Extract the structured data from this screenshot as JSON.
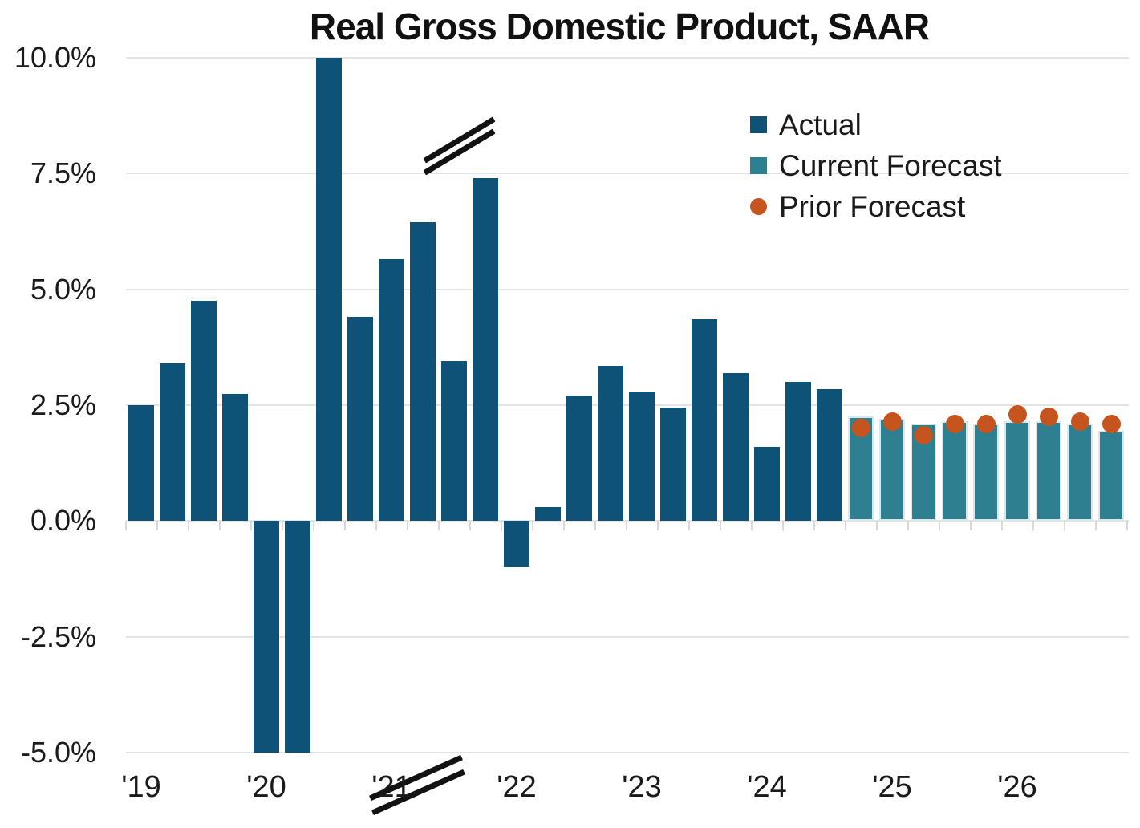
{
  "chart_data": {
    "type": "bar",
    "title": "Real Gross Domestic Product, SAAR",
    "xlabel": "",
    "ylabel": "",
    "ylim": [
      -5,
      10
    ],
    "grid": true,
    "y_tick_labels": [
      "10.0%",
      "7.5%",
      "5.0%",
      "2.5%",
      "0.0%",
      "-2.5%",
      "-5.0%"
    ],
    "y_tick_values": [
      10,
      7.5,
      5,
      2.5,
      0,
      -2.5,
      -5
    ],
    "x_year_labels": [
      "'19",
      "'20",
      "'21",
      "'22",
      "'23",
      "'24",
      "'25",
      "'26"
    ],
    "quarters_per_year": 4,
    "axis_break_note": "2020 Q1 and Q2 bars clipped at -5% and 2020 Q3 bar clipped at 10%, marked with double-slash break marks",
    "colors": {
      "actual": "#0f5277",
      "current_forecast": "#2e7f90",
      "current_forecast_edge": "#d9e6ec",
      "prior_forecast": "#c6541e",
      "gridline": "#e4e4e4",
      "tick": "#d9d9d9",
      "text": "#1a1a1a"
    },
    "legend": {
      "position": "upper right",
      "entries": [
        {
          "label": "Actual",
          "color": "#0f5277",
          "marker": "square"
        },
        {
          "label": "Current Forecast",
          "color": "#2e7f90",
          "marker": "square"
        },
        {
          "label": "Prior Forecast",
          "color": "#c6541e",
          "marker": "circle"
        }
      ]
    },
    "series": [
      {
        "name": "Actual",
        "type": "bar",
        "color": "#0f5277",
        "points": [
          {
            "x": "2019 Q1",
            "y": 2.5
          },
          {
            "x": "2019 Q2",
            "y": 3.4
          },
          {
            "x": "2019 Q3",
            "y": 4.75
          },
          {
            "x": "2019 Q4",
            "y": 2.75
          },
          {
            "x": "2020 Q1",
            "y": -5.0,
            "clipped": "below"
          },
          {
            "x": "2020 Q2",
            "y": -5.0,
            "clipped": "below"
          },
          {
            "x": "2020 Q3",
            "y": 10.0,
            "clipped": "above"
          },
          {
            "x": "2020 Q4",
            "y": 4.4
          },
          {
            "x": "2021 Q1",
            "y": 5.65
          },
          {
            "x": "2021 Q2",
            "y": 6.45
          },
          {
            "x": "2021 Q3",
            "y": 3.45
          },
          {
            "x": "2021 Q4",
            "y": 7.4
          },
          {
            "x": "2022 Q1",
            "y": -1.0
          },
          {
            "x": "2022 Q2",
            "y": 0.3
          },
          {
            "x": "2022 Q3",
            "y": 2.7
          },
          {
            "x": "2022 Q4",
            "y": 3.35
          },
          {
            "x": "2023 Q1",
            "y": 2.8
          },
          {
            "x": "2023 Q2",
            "y": 2.45
          },
          {
            "x": "2023 Q3",
            "y": 4.35
          },
          {
            "x": "2023 Q4",
            "y": 3.2
          },
          {
            "x": "2024 Q1",
            "y": 1.6
          },
          {
            "x": "2024 Q2",
            "y": 3.0
          },
          {
            "x": "2024 Q3",
            "y": 2.85
          }
        ]
      },
      {
        "name": "Current Forecast",
        "type": "bar",
        "color": "#2e7f90",
        "points": [
          {
            "x": "2024 Q4",
            "y": 2.25
          },
          {
            "x": "2025 Q1",
            "y": 2.2
          },
          {
            "x": "2025 Q2",
            "y": 2.1
          },
          {
            "x": "2025 Q3",
            "y": 2.15
          },
          {
            "x": "2025 Q4",
            "y": 2.1
          },
          {
            "x": "2026 Q1",
            "y": 2.15
          },
          {
            "x": "2026 Q2",
            "y": 2.15
          },
          {
            "x": "2026 Q3",
            "y": 2.1
          },
          {
            "x": "2026 Q4",
            "y": 1.95
          }
        ]
      },
      {
        "name": "Prior Forecast",
        "type": "scatter",
        "color": "#c6541e",
        "points": [
          {
            "x": "2024 Q4",
            "y": 2.0
          },
          {
            "x": "2025 Q1",
            "y": 2.15
          },
          {
            "x": "2025 Q2",
            "y": 1.85
          },
          {
            "x": "2025 Q3",
            "y": 2.1
          },
          {
            "x": "2025 Q4",
            "y": 2.1
          },
          {
            "x": "2026 Q1",
            "y": 2.3
          },
          {
            "x": "2026 Q2",
            "y": 2.25
          },
          {
            "x": "2026 Q3",
            "y": 2.15
          },
          {
            "x": "2026 Q4",
            "y": 2.1
          }
        ]
      }
    ]
  }
}
